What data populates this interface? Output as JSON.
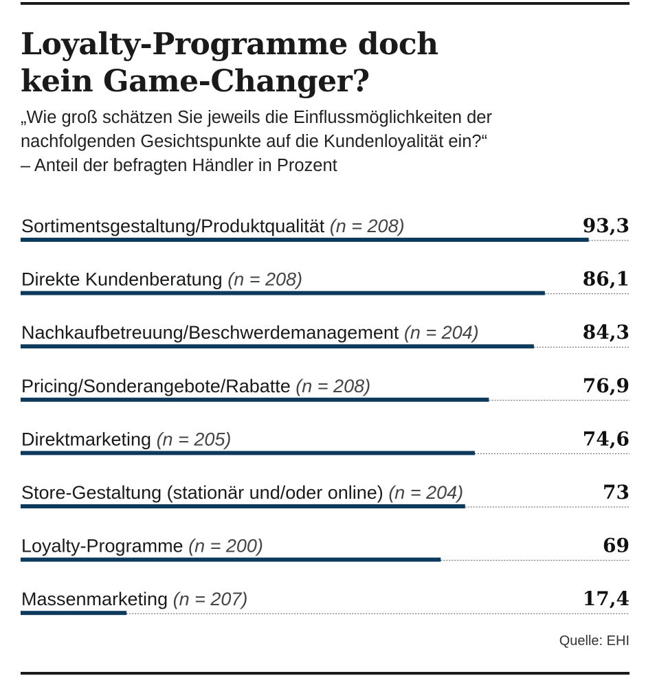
{
  "title": [
    "Loyalty-Programme doch",
    "kein Game-Changer?"
  ],
  "subtitle": [
    "„Wie groß schätzen Sie jeweils die Einflussmöglichkeiten der",
    "nachfolgenden Gesichtspunkte auf die Kundenloyalität ein?“",
    "– Anteil der befragten Händler in Prozent"
  ],
  "source": "Quelle: EHI",
  "colors": {
    "bar": "#0d3a5c",
    "text": "#1a1a1a"
  },
  "chart_data": {
    "type": "bar",
    "orientation": "horizontal",
    "xlim": [
      0,
      100
    ],
    "grid": false,
    "categories": [
      "Sortimentsgestaltung/Produktqualität",
      "Direkte Kundenberatung",
      "Nachkaufbetreuung/Beschwerdemanagement",
      "Pricing/Sonderangebote/Rabatte",
      "Direktmarketing",
      "Store-Gestaltung (stationär und/oder online)",
      "Loyalty-Programme",
      "Massenmarketing"
    ],
    "n_labels": [
      "(n = 208)",
      "(n = 208)",
      "(n = 204)",
      "(n = 208)",
      "(n = 205)",
      "(n = 204)",
      "(n = 200)",
      "(n = 207)"
    ],
    "values": [
      93.3,
      86.1,
      84.3,
      76.9,
      74.6,
      73,
      69,
      17.4
    ],
    "value_labels": [
      "93,3",
      "86,1",
      "84,3",
      "76,9",
      "74,6",
      "73",
      "69",
      "17,4"
    ]
  }
}
